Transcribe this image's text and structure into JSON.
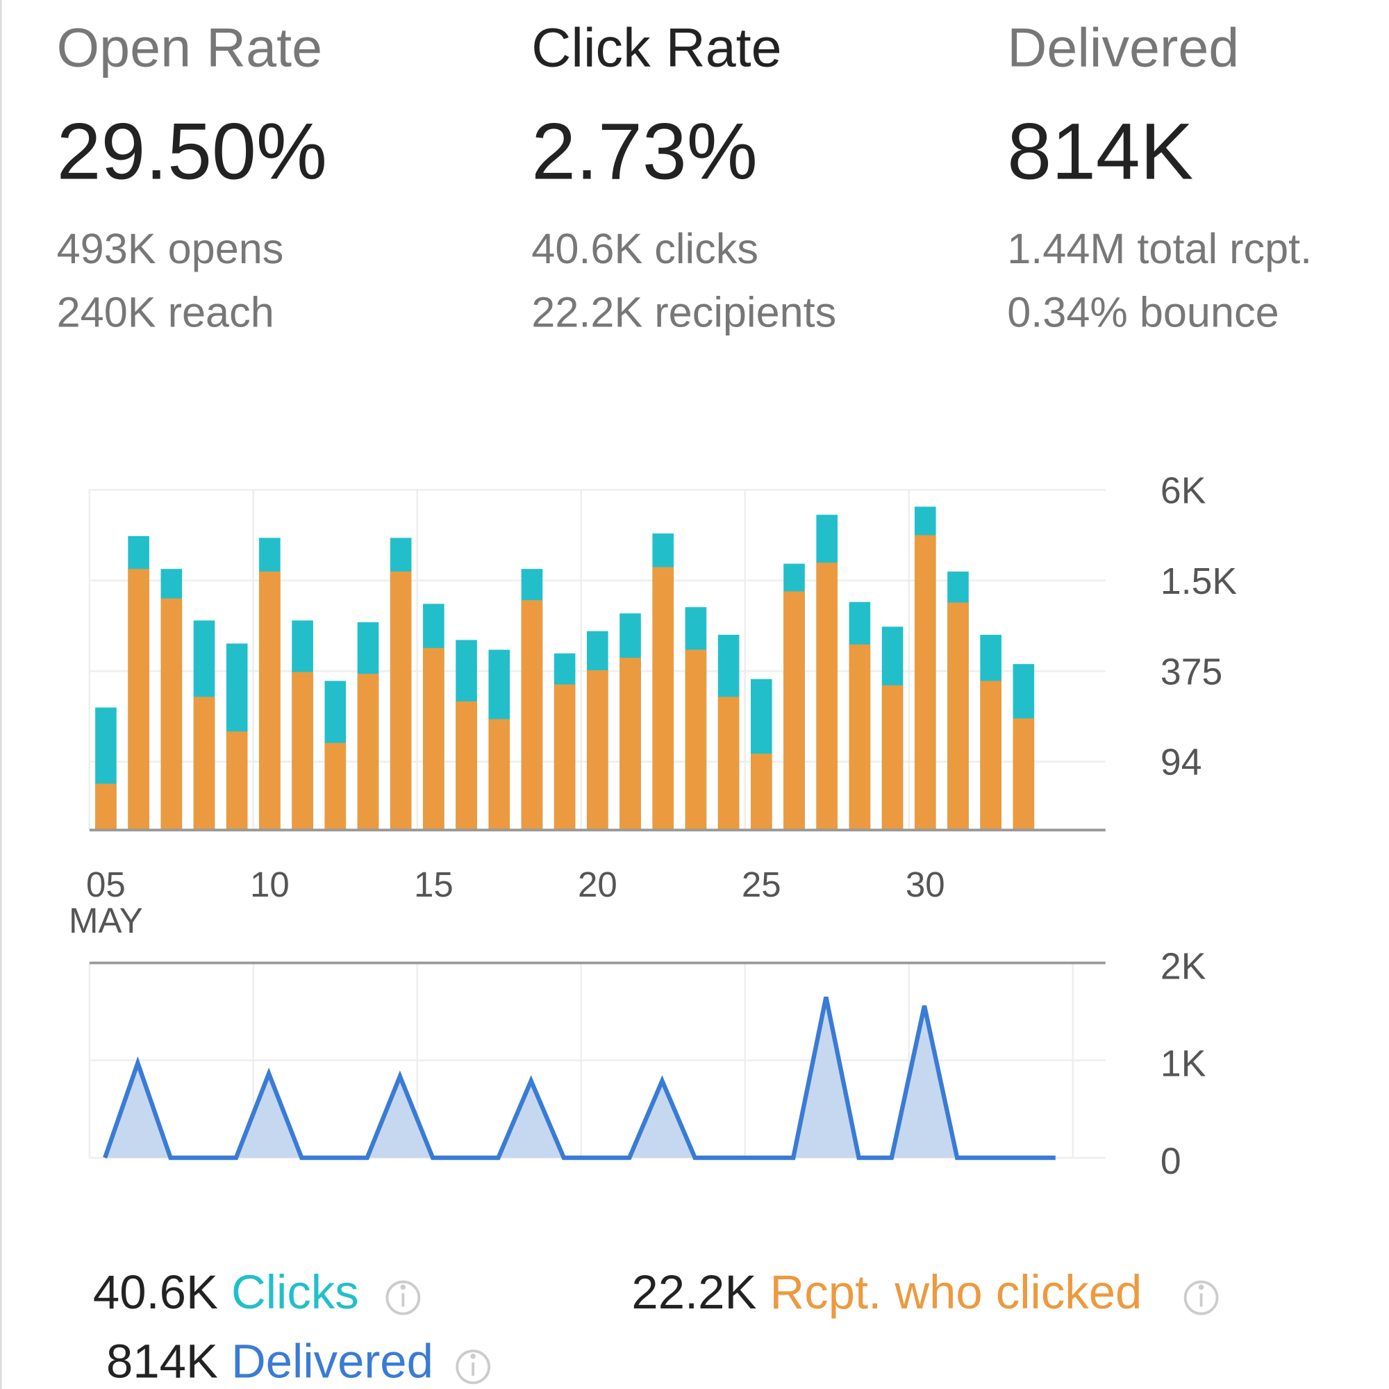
{
  "metrics": [
    {
      "title": "Open Rate",
      "value": "29.50%",
      "details": [
        "493K opens",
        "240K reach"
      ]
    },
    {
      "title": "Click Rate",
      "value": "2.73%",
      "details": [
        "40.6K clicks",
        "22.2K recipients"
      ]
    },
    {
      "title": "Delivered",
      "value": "814K",
      "details": [
        "1.44M total rcpt.",
        "0.34% bounce"
      ]
    }
  ],
  "chart_data": [
    {
      "type": "bar",
      "categories": [
        "05",
        null,
        null,
        null,
        null,
        "10",
        null,
        null,
        null,
        null,
        "15",
        null,
        null,
        null,
        null,
        "20",
        null,
        null,
        null,
        null,
        "25",
        null,
        null,
        null,
        null,
        "30",
        null,
        null,
        null
      ],
      "x_month_label": "MAY",
      "series": [
        {
          "name": "Clicks",
          "color": "#22bfca",
          "values": [
            215,
            2960,
            1790,
            814,
            572,
            2880,
            814,
            323,
            792,
            2880,
            1050,
            604,
            520,
            1790,
            492,
            691,
            907,
            3080,
            998,
            654,
            332,
            1940,
            4100,
            1080,
            740,
            4640,
            1720,
            654,
            418
          ]
        },
        {
          "name": "Rcpt. who clicked",
          "color": "#ec9a3f",
          "values": [
            67,
            1790,
            1140,
            253,
            149,
            1720,
            370,
            125,
            360,
            1720,
            534,
            236,
            180,
            1110,
            306,
            380,
            460,
            1840,
            520,
            253,
            106,
            1270,
            1970,
            564,
            302,
            3000,
            1070,
            323,
            182
          ]
        }
      ],
      "ylim": [
        33,
        6000
      ],
      "yticks": [
        94,
        375,
        {
          "value": 1500,
          "label": "1.5K"
        },
        {
          "value": 6000,
          "label": "6K"
        }
      ],
      "log_scale": true,
      "grid": true
    },
    {
      "type": "area",
      "series": [
        {
          "name": "Delivered",
          "color": "#3a7bd5",
          "values": [
            0,
            973,
            0,
            0,
            0,
            864,
            0,
            0,
            0,
            836,
            0,
            0,
            0,
            790,
            0,
            0,
            0,
            790,
            0,
            0,
            0,
            0,
            1650,
            0,
            0,
            1560,
            0,
            0,
            0,
            0
          ]
        }
      ],
      "ylim": [
        0,
        2000
      ],
      "yticks": [
        0,
        {
          "value": 1000,
          "label": "1K"
        },
        {
          "value": 2000,
          "label": "2K"
        }
      ],
      "grid": true
    }
  ],
  "legend_totals": [
    "40.6K",
    "22.2K",
    "814K"
  ]
}
